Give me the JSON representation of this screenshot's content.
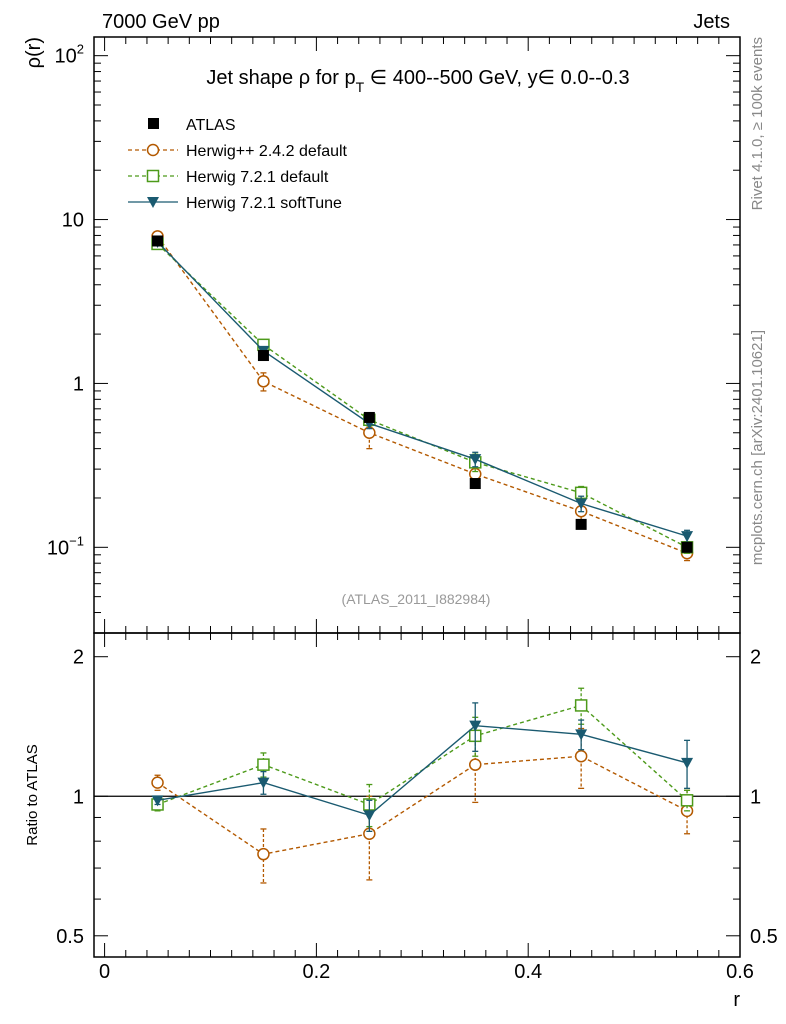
{
  "header": {
    "left": "7000 GeV pp",
    "right": "Jets"
  },
  "title": {
    "prefix": "Jet shape ρ for p",
    "sub": "T",
    "suffix": " ∈ 400--500 GeV, y∈ 0.0--0.3"
  },
  "side_labels": {
    "rivet": "Rivet 4.1.0, ≥ 100k events",
    "mcplots": "mcplots.cern.ch [arXiv:2401.10621]"
  },
  "watermark": "(ATLAS_2011_I882984)",
  "colors": {
    "atlas": "#000000",
    "herwig_242": "#b35900",
    "herwig_721": "#4d9a1a",
    "herwig_soft": "#1a5a70"
  },
  "chart_data": [
    {
      "type": "line",
      "title": "Jet shape ρ for p_T ∈ 400--500 GeV, y∈ 0.0--0.3",
      "xlabel": "r",
      "ylabel": "ρ(r)",
      "yscale": "log",
      "xlim": [
        -0.01,
        0.6
      ],
      "ylim": [
        0.03,
        130
      ],
      "yticks": [
        {
          "value": 100,
          "base": "10",
          "exp": "2"
        },
        {
          "value": 10,
          "base": "10",
          "exp": ""
        },
        {
          "value": 1,
          "base": "1",
          "exp": ""
        },
        {
          "value": 0.1,
          "base": "10",
          "exp": "−1"
        }
      ],
      "legend_position": "top-left",
      "x": [
        0.05,
        0.15,
        0.25,
        0.35,
        0.45,
        0.55
      ],
      "series": [
        {
          "name": "ATLAS",
          "style": "data",
          "color": "#000000",
          "marker": "filled-square",
          "values": [
            7.4,
            1.48,
            0.62,
            0.245,
            0.138,
            0.1
          ],
          "errors": [
            0.4,
            0.08,
            0.03,
            0.015,
            0.008,
            0.006
          ]
        },
        {
          "name": "Herwig++ 2.4.2 default",
          "style": "dashed",
          "color": "#b35900",
          "marker": "open-circle",
          "values": [
            7.9,
            1.03,
            0.5,
            0.28,
            0.166,
            0.092
          ],
          "errors": [
            0.3,
            0.13,
            0.1,
            0.04,
            0.025,
            0.009
          ]
        },
        {
          "name": "Herwig 7.2.1 default",
          "style": "dashed",
          "color": "#4d9a1a",
          "marker": "open-square",
          "values": [
            7.1,
            1.72,
            0.6,
            0.33,
            0.215,
            0.1
          ],
          "errors": [
            0.2,
            0.08,
            0.05,
            0.04,
            0.02,
            0.008
          ]
        },
        {
          "name": "Herwig 7.2.1 softTune",
          "style": "solid",
          "color": "#1a5a70",
          "marker": "filled-triangle-down",
          "values": [
            7.3,
            1.58,
            0.57,
            0.345,
            0.185,
            0.117
          ],
          "errors": [
            0.2,
            0.08,
            0.04,
            0.035,
            0.02,
            0.01
          ]
        }
      ]
    },
    {
      "type": "line",
      "ylabel": "Ratio to ATLAS",
      "xlabel": "r",
      "yscale": "log",
      "xlim": [
        -0.01,
        0.6
      ],
      "ylim": [
        0.45,
        2.25
      ],
      "xticks": [
        0,
        0.2,
        0.4,
        0.6
      ],
      "xticklabels": [
        "0",
        "0.2",
        "0.4",
        "0.6"
      ],
      "yticks": [
        0.5,
        1,
        2
      ],
      "yticklabels": [
        "0.5",
        "1",
        "2"
      ],
      "reference_line": 1,
      "x": [
        0.05,
        0.15,
        0.25,
        0.35,
        0.45,
        0.55
      ],
      "series": [
        {
          "name": "Herwig++ 2.4.2 default",
          "style": "dashed",
          "color": "#b35900",
          "marker": "open-circle",
          "values": [
            1.07,
            0.75,
            0.83,
            1.17,
            1.22,
            0.93
          ],
          "errors": [
            0.04,
            0.1,
            0.17,
            0.2,
            0.18,
            0.1
          ]
        },
        {
          "name": "Herwig 7.2.1 default",
          "style": "dashed",
          "color": "#4d9a1a",
          "marker": "open-square",
          "values": [
            0.96,
            1.17,
            0.96,
            1.35,
            1.57,
            0.98
          ],
          "errors": [
            0.03,
            0.07,
            0.1,
            0.13,
            0.14,
            0.05
          ]
        },
        {
          "name": "Herwig 7.2.1 softTune",
          "style": "solid",
          "color": "#1a5a70",
          "marker": "filled-triangle-down",
          "values": [
            0.98,
            1.07,
            0.91,
            1.42,
            1.36,
            1.18
          ],
          "errors": [
            0.02,
            0.06,
            0.07,
            0.17,
            0.1,
            0.14
          ]
        }
      ]
    }
  ]
}
